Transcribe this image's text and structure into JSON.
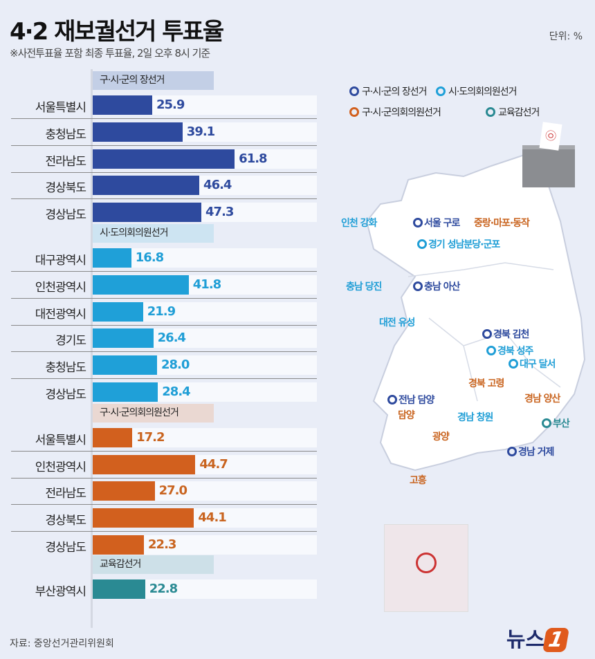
{
  "title": "4·2 재보궐선거 투표율",
  "subtitle": "※사전투표율 포함 최종 투표율, 2일 오후 8시 기준",
  "unit": "단위: %",
  "source": "자료: 중앙선거관리위원회",
  "logo": {
    "text": "뉴스",
    "num": "1"
  },
  "chart_data": {
    "type": "bar",
    "title": "4·2 재보궐선거 투표율",
    "xlim": [
      0,
      100
    ],
    "groups": [
      {
        "name": "구·시·군의 장선거",
        "color": "#2e4a9e",
        "header_bg": "#c3cfe6",
        "text_color": "#2e4a9e",
        "categories": [
          "서울특별시",
          "충청남도",
          "전라남도",
          "경상북도",
          "경상남도"
        ],
        "values": [
          25.9,
          39.1,
          61.8,
          46.4,
          47.3
        ]
      },
      {
        "name": "시·도의회의원선거",
        "color": "#1fa0d8",
        "header_bg": "#cde4f2",
        "text_color": "#1f9ed6",
        "categories": [
          "대구광역시",
          "인천광역시",
          "대전광역시",
          "경기도",
          "충청남도",
          "경상남도"
        ],
        "values": [
          16.8,
          41.8,
          21.9,
          26.4,
          28.0,
          28.4
        ]
      },
      {
        "name": "구·시·군의회의원선거",
        "color": "#d2601e",
        "header_bg": "#ead8d2",
        "text_color": "#c9641f",
        "categories": [
          "서울특별시",
          "인천광역시",
          "전라남도",
          "경상북도",
          "경상남도"
        ],
        "values": [
          17.2,
          44.7,
          27.0,
          44.1,
          22.3
        ]
      },
      {
        "name": "교육감선거",
        "color": "#2a8a93",
        "header_bg": "#cde0e8",
        "text_color": "#2a8a93",
        "categories": [
          "부산광역시"
        ],
        "values": [
          22.8
        ]
      }
    ]
  },
  "legend": [
    {
      "label": "구·시·군의 장선거",
      "color": "#2e4a9e"
    },
    {
      "label": "시·도의회의원선거",
      "color": "#1fa0d8"
    },
    {
      "label": "구·시·군의회의원선거",
      "color": "#d2601e"
    },
    {
      "label": "교육감선거",
      "color": "#2a8a93"
    }
  ],
  "map_labels": [
    {
      "text": "인천 강화",
      "color": "#1f9ed6"
    },
    {
      "text": "서울 구로",
      "color": "#2e4a9e"
    },
    {
      "text": "중랑·마포·동작",
      "color": "#c9641f"
    },
    {
      "text": "경기 성남분당·군포",
      "color": "#1f9ed6"
    },
    {
      "text": "충남 당진",
      "color": "#1f9ed6"
    },
    {
      "text": "충남 아산",
      "color": "#2e4a9e"
    },
    {
      "text": "대전 유성",
      "color": "#1f9ed6"
    },
    {
      "text": "경북 김천",
      "color": "#2e4a9e"
    },
    {
      "text": "경북 성주",
      "color": "#1f9ed6"
    },
    {
      "text": "대구 달서",
      "color": "#1f9ed6"
    },
    {
      "text": "경북 고령",
      "color": "#c9641f"
    },
    {
      "text": "전남 담양",
      "color": "#2e4a9e"
    },
    {
      "text": "담양",
      "color": "#c9641f"
    },
    {
      "text": "경남 양산",
      "color": "#c9641f"
    },
    {
      "text": "경남 창원",
      "color": "#1f9ed6"
    },
    {
      "text": "부산",
      "color": "#2a8a93"
    },
    {
      "text": "광양",
      "color": "#c9641f"
    },
    {
      "text": "경남 거제",
      "color": "#2e4a9e"
    },
    {
      "text": "고흥",
      "color": "#c9641f"
    }
  ]
}
